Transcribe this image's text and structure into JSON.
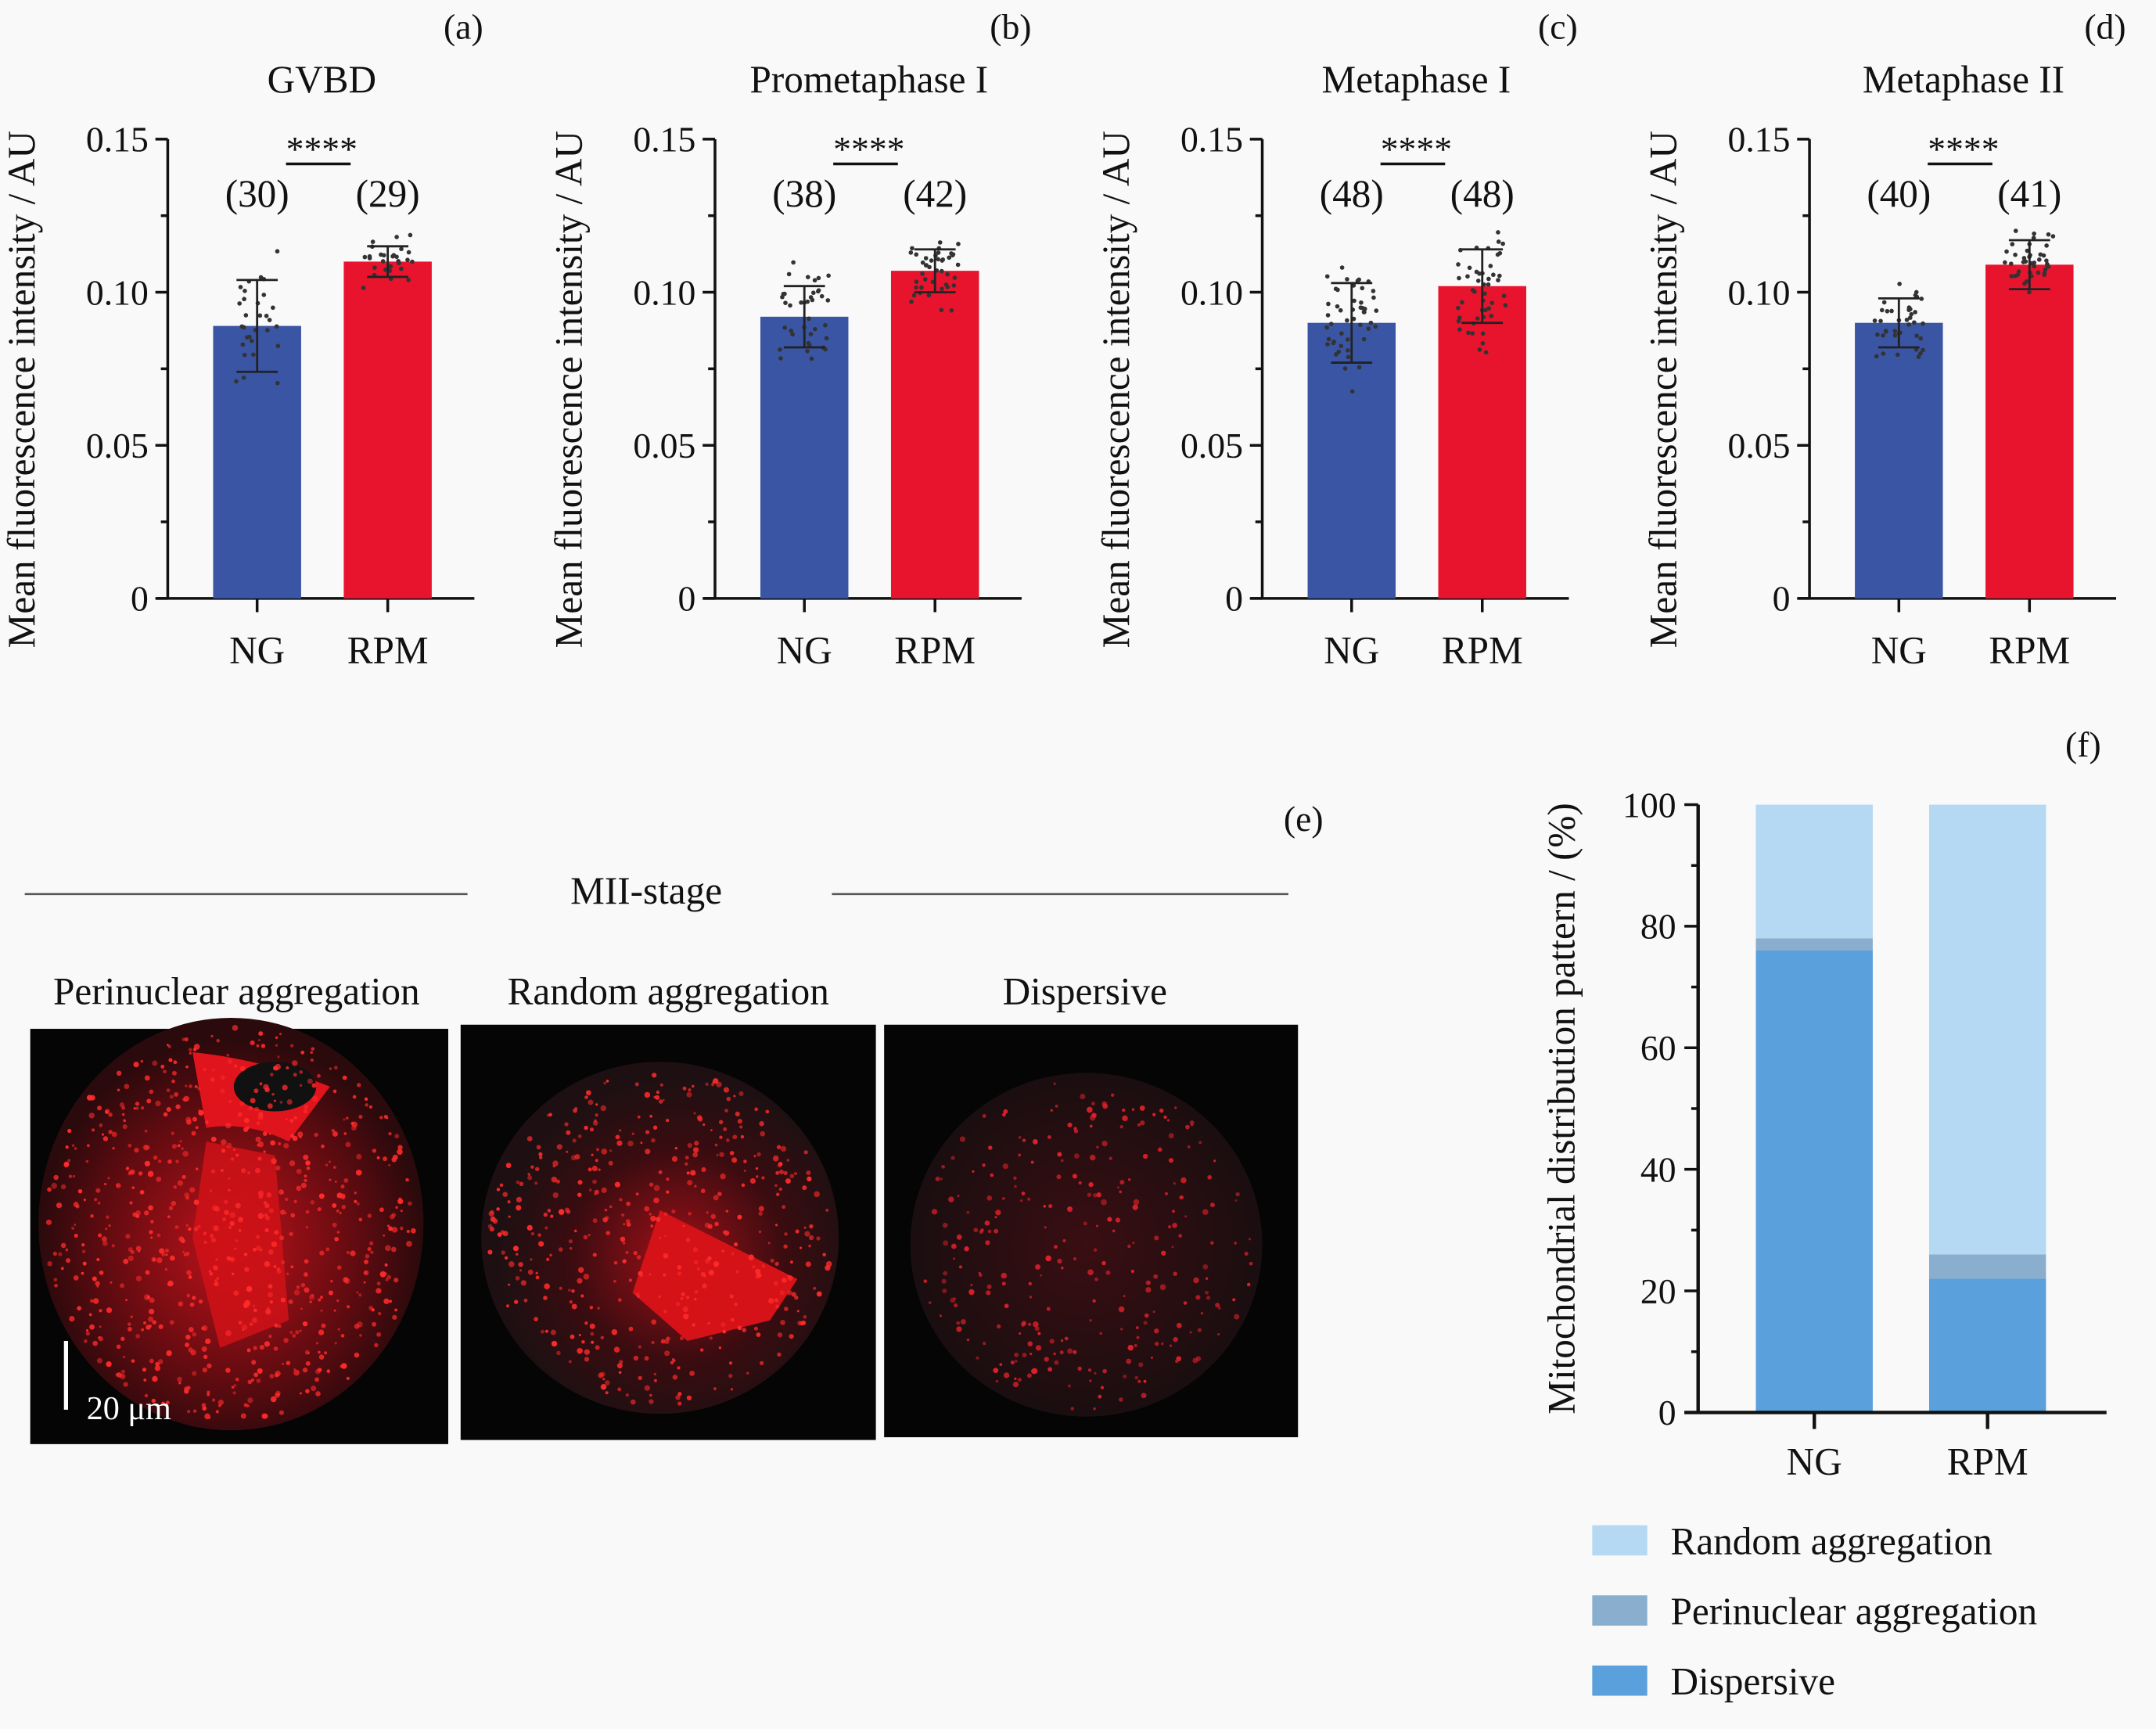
{
  "colors": {
    "NG": "#3a55a4",
    "RPM": "#e8142e",
    "random": "#b5d8f3",
    "perinuclear": "#8aaecd",
    "dispersive": "#5aa0dc"
  },
  "chart_data": [
    {
      "type": "bar",
      "panel": "(a)",
      "title": "GVBD",
      "ylabel": "Mean fluorescence intensity / AU",
      "ylim": [
        0,
        0.15
      ],
      "yticks": [
        "0",
        "0.05",
        "0.10",
        "0.15"
      ],
      "categories": [
        "NG",
        "RPM"
      ],
      "values": [
        0.089,
        0.11
      ],
      "sd": [
        0.015,
        0.005
      ],
      "n_labels": [
        "(30)",
        "(29)"
      ],
      "n": [
        30,
        29
      ],
      "significance": "****"
    },
    {
      "type": "bar",
      "panel": "(b)",
      "title": "Prometaphase I",
      "ylabel": "Mean fluorescence intensity / AU",
      "ylim": [
        0,
        0.15
      ],
      "yticks": [
        "0",
        "0.05",
        "0.10",
        "0.15"
      ],
      "categories": [
        "NG",
        "RPM"
      ],
      "values": [
        0.092,
        0.107
      ],
      "sd": [
        0.01,
        0.007
      ],
      "n_labels": [
        "(38)",
        "(42)"
      ],
      "n": [
        38,
        42
      ],
      "significance": "****"
    },
    {
      "type": "bar",
      "panel": "(c)",
      "title": "Metaphase I",
      "ylabel": "Mean fluorescence intensity / AU",
      "ylim": [
        0,
        0.15
      ],
      "yticks": [
        "0",
        "0.05",
        "0.10",
        "0.15"
      ],
      "categories": [
        "NG",
        "RPM"
      ],
      "values": [
        0.09,
        0.102
      ],
      "sd": [
        0.013,
        0.012
      ],
      "n_labels": [
        "(48)",
        "(48)"
      ],
      "n": [
        48,
        48
      ],
      "significance": "****"
    },
    {
      "type": "bar",
      "panel": "(d)",
      "title": "Metaphase II",
      "ylabel": "Mean fluorescence intensity / AU",
      "ylim": [
        0,
        0.15
      ],
      "yticks": [
        "0",
        "0.05",
        "0.10",
        "0.15"
      ],
      "categories": [
        "NG",
        "RPM"
      ],
      "values": [
        0.09,
        0.109
      ],
      "sd": [
        0.008,
        0.008
      ],
      "n_labels": [
        "(40)",
        "(41)"
      ],
      "n": [
        40,
        41
      ],
      "significance": "****"
    },
    {
      "type": "bar",
      "stacked": true,
      "panel": "(f)",
      "ylabel": "Mitochondrial distribution pattern / (%)",
      "ylim": [
        0,
        100
      ],
      "yticks": [
        "0",
        "20",
        "40",
        "60",
        "80",
        "100"
      ],
      "categories": [
        "NG",
        "RPM"
      ],
      "series": [
        {
          "name": "Dispersive",
          "values": [
            76,
            22
          ]
        },
        {
          "name": "Perinuclear aggregation",
          "values": [
            2,
            4
          ]
        },
        {
          "name": "Random aggregation",
          "values": [
            22,
            74
          ]
        }
      ],
      "legend": [
        "Random aggregation",
        "Perinuclear aggregation",
        "Dispersive"
      ],
      "legend_placement": "bottom"
    }
  ],
  "panel_e": {
    "label": "(e)",
    "stage": "MII-stage",
    "images": [
      "Perinuclear aggregation",
      "Random aggregation",
      "Dispersive"
    ],
    "scale_bar": "20 μm"
  }
}
